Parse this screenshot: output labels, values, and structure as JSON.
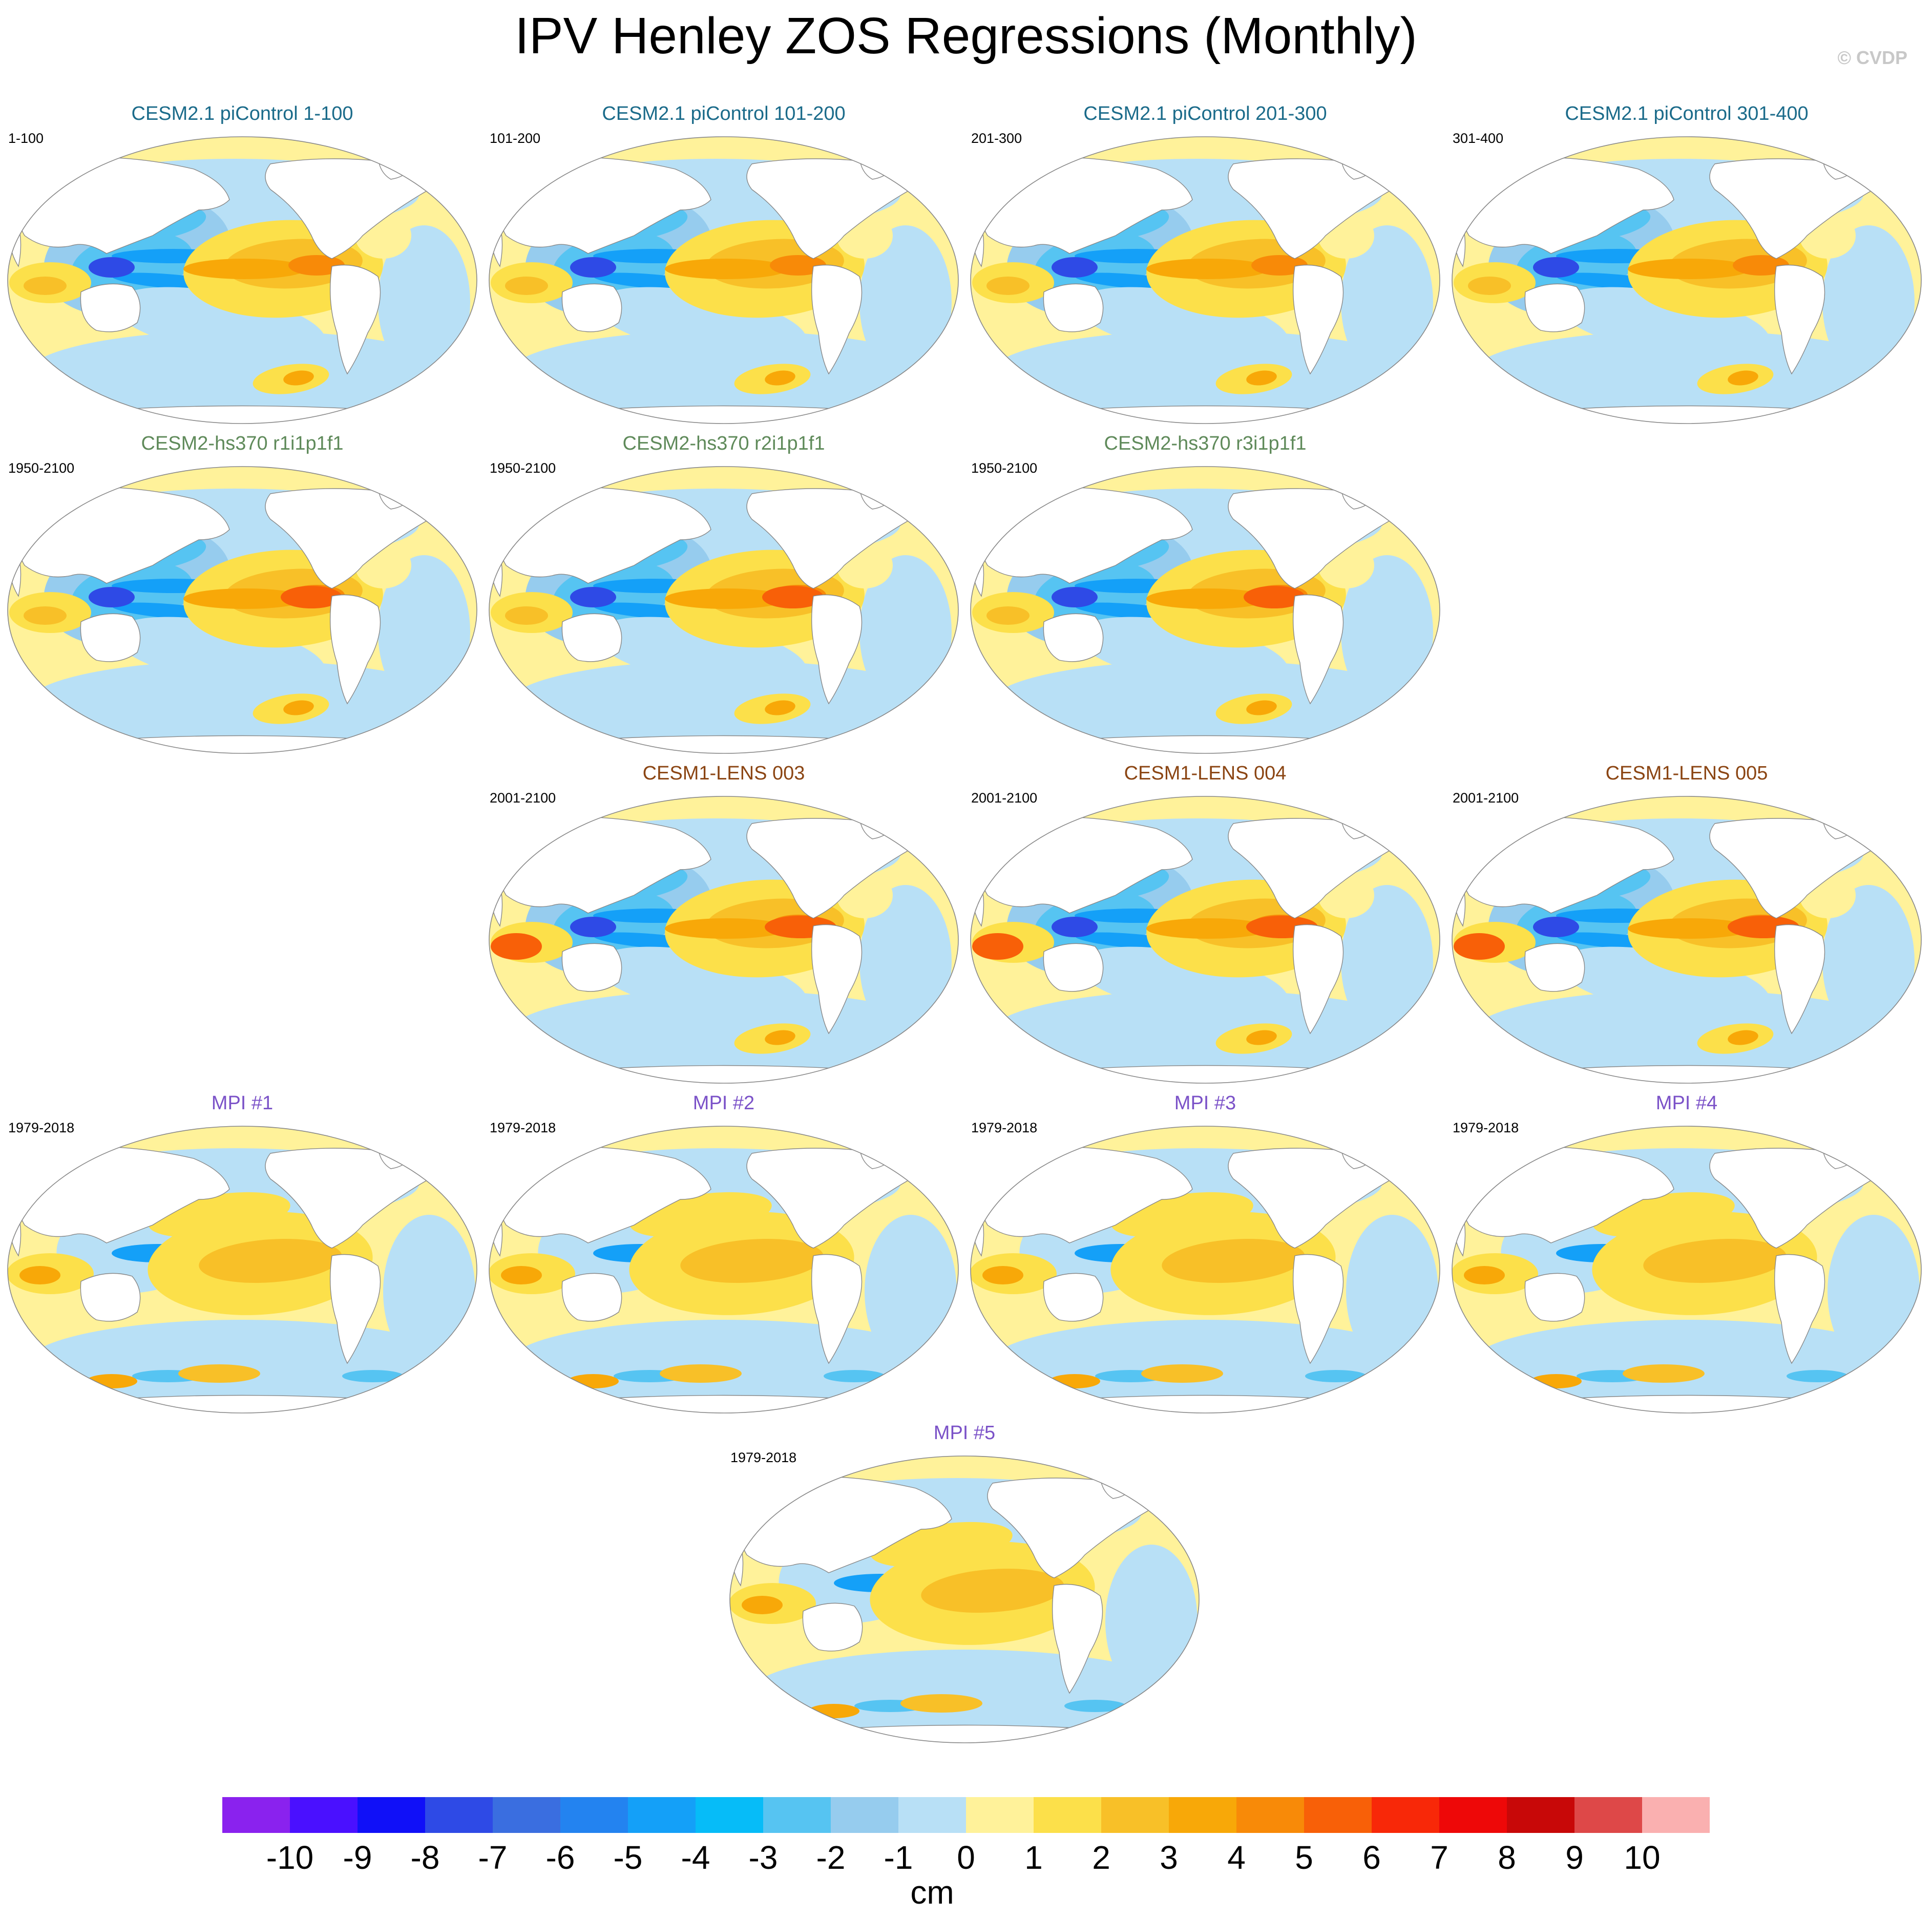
{
  "title": "IPV Henley ZOS Regressions (Monthly)",
  "watermark": "© CVDP",
  "chart_data": {
    "type": "heatmap",
    "title": "IPV Henley ZOS Regressions (Monthly)",
    "variable": "ZOS",
    "units": "cm",
    "panels": [
      {
        "title": "CESM2.1 piControl 1-100",
        "period": "1-100",
        "color": "#1b6b8a",
        "pattern": "cesm2pi"
      },
      {
        "title": "CESM2.1 piControl 101-200",
        "period": "101-200",
        "color": "#1b6b8a",
        "pattern": "cesm2pi"
      },
      {
        "title": "CESM2.1 piControl 201-300",
        "period": "201-300",
        "color": "#1b6b8a",
        "pattern": "cesm2pi"
      },
      {
        "title": "CESM2.1 piControl 301-400",
        "period": "301-400",
        "color": "#1b6b8a",
        "pattern": "cesm2pi"
      },
      {
        "title": "CESM2-hs370 r1i1p1f1",
        "period": "1950-2100",
        "color": "#5f8a5a",
        "pattern": "hs370"
      },
      {
        "title": "CESM2-hs370 r2i1p1f1",
        "period": "1950-2100",
        "color": "#5f8a5a",
        "pattern": "hs370"
      },
      {
        "title": "CESM2-hs370 r3i1p1f1",
        "period": "1950-2100",
        "color": "#5f8a5a",
        "pattern": "hs370"
      },
      {
        "title": "CESM1-LENS 003",
        "period": "2001-2100",
        "color": "#8b4513",
        "pattern": "lens"
      },
      {
        "title": "CESM1-LENS 004",
        "period": "2001-2100",
        "color": "#8b4513",
        "pattern": "lens"
      },
      {
        "title": "CESM1-LENS 005",
        "period": "2001-2100",
        "color": "#8b4513",
        "pattern": "lens"
      },
      {
        "title": "MPI #1",
        "period": "1979-2018",
        "color": "#7b52c8",
        "pattern": "mpi"
      },
      {
        "title": "MPI #2",
        "period": "1979-2018",
        "color": "#7b52c8",
        "pattern": "mpi"
      },
      {
        "title": "MPI #3",
        "period": "1979-2018",
        "color": "#7b52c8",
        "pattern": "mpi"
      },
      {
        "title": "MPI #4",
        "period": "1979-2018",
        "color": "#7b52c8",
        "pattern": "mpi"
      },
      {
        "title": "MPI #5",
        "period": "1979-2018",
        "color": "#7b52c8",
        "pattern": "mpi"
      }
    ],
    "colorbar": {
      "labels": [
        "-10",
        "-9",
        "-8",
        "-7",
        "-6",
        "-5",
        "-4",
        "-3",
        "-2",
        "-1",
        "0",
        "1",
        "2",
        "3",
        "4",
        "5",
        "6",
        "7",
        "8",
        "9",
        "10"
      ],
      "colors": [
        "#8a22ee",
        "#4a10ff",
        "#1010f8",
        "#2e4ae6",
        "#3a6ee0",
        "#2383f0",
        "#14a0f8",
        "#06bcf8",
        "#56c4f2",
        "#96ccee",
        "#b8e0f6",
        "#fff29a",
        "#fce04a",
        "#f8c028",
        "#f8a808",
        "#f88a08",
        "#f86008",
        "#f82808",
        "#ee0808",
        "#c80808",
        "#de4848",
        "#fab0b0"
      ],
      "unit": "cm"
    }
  }
}
